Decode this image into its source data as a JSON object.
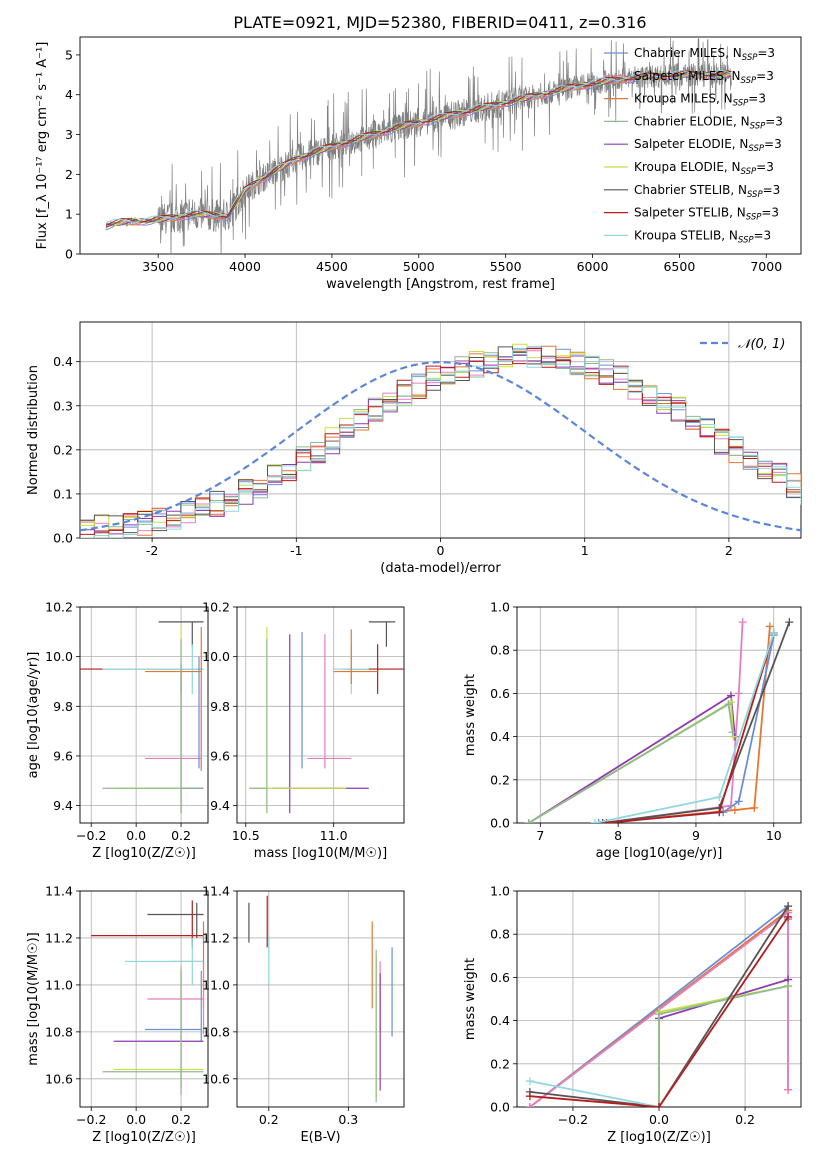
{
  "figure_title": "PLATE=0921, MJD=52380, FIBERID=0411, z=0.316",
  "colors": {
    "chabrier_miles": "#6b8fd6",
    "salpeter_miles": "#e57ec0",
    "kroupa_miles": "#e6772e",
    "chabrier_elodie": "#8fbc8f",
    "salpeter_elodie": "#8e3cae",
    "kroupa_elodie": "#c7df45",
    "chabrier_stelib": "#555555",
    "salpeter_stelib": "#b81c1c",
    "kroupa_stelib": "#8fd7dc",
    "data": "#808080",
    "gaussian": "#5b87d9"
  },
  "legend_spectrum": [
    {
      "label": "Chabrier MILES, N",
      "sub": "SSP",
      "tail": "=3"
    },
    {
      "label": "Salpeter MILES, N",
      "sub": "SSP",
      "tail": "=3"
    },
    {
      "label": "Kroupa MILES, N",
      "sub": "SSP",
      "tail": "=3"
    },
    {
      "label": "Chabrier ELODIE, N",
      "sub": "SSP",
      "tail": "=3"
    },
    {
      "label": "Salpeter ELODIE, N",
      "sub": "SSP",
      "tail": "=3"
    },
    {
      "label": "Kroupa ELODIE, N",
      "sub": "SSP",
      "tail": "=3"
    },
    {
      "label": "Chabrier STELIB, N",
      "sub": "SSP",
      "tail": "=3"
    },
    {
      "label": "Salpeter STELIB, N",
      "sub": "SSP",
      "tail": "=3"
    },
    {
      "label": "Kroupa STELIB, N",
      "sub": "SSP",
      "tail": "=3"
    }
  ],
  "legend_hist": {
    "label": "𝒩(0, 1)"
  },
  "chart_data": [
    {
      "id": "spectrum",
      "type": "line",
      "xlabel": "wavelength [Angstrom, rest frame]",
      "ylabel": "Flux [f_λ 10⁻¹⁷ erg cm⁻² s⁻¹ A⁻¹]",
      "xlim": [
        3050,
        7200
      ],
      "ylim": [
        0,
        5.45
      ],
      "xticks": [
        3500,
        4000,
        4500,
        5000,
        5500,
        6000,
        6500,
        7000
      ],
      "yticks": [
        0,
        1,
        2,
        3,
        4,
        5
      ],
      "grid": false,
      "legend": "top-right",
      "model_continuum": [
        [
          3200,
          0.72
        ],
        [
          3300,
          0.8
        ],
        [
          3500,
          0.85
        ],
        [
          3700,
          1.0
        ],
        [
          3900,
          0.95
        ],
        [
          4000,
          1.6
        ],
        [
          4100,
          1.9
        ],
        [
          4300,
          2.4
        ],
        [
          4500,
          2.7
        ],
        [
          4700,
          2.95
        ],
        [
          4900,
          3.2
        ],
        [
          5100,
          3.4
        ],
        [
          5300,
          3.6
        ],
        [
          5500,
          3.8
        ],
        [
          5700,
          4.0
        ],
        [
          5900,
          4.2
        ],
        [
          6100,
          4.35
        ],
        [
          6300,
          4.45
        ],
        [
          6500,
          4.5
        ],
        [
          6700,
          4.5
        ],
        [
          6800,
          4.5
        ]
      ]
    },
    {
      "id": "residuals",
      "type": "bar",
      "xlabel": "(data-model)/error",
      "ylabel": "Normed distribution",
      "xlim": [
        -2.5,
        2.5
      ],
      "ylim": [
        0,
        0.49
      ],
      "xticks": [
        -2,
        -1,
        0,
        1,
        2
      ],
      "yticks": [
        0.0,
        0.1,
        0.2,
        0.3,
        0.4
      ],
      "grid": true,
      "legend": "top-right",
      "bin_width": 0.1,
      "hist_base": [
        0.02,
        0.022,
        0.026,
        0.03,
        0.035,
        0.04,
        0.048,
        0.057,
        0.067,
        0.078,
        0.09,
        0.105,
        0.12,
        0.14,
        0.16,
        0.18,
        0.2,
        0.22,
        0.245,
        0.27,
        0.29,
        0.31,
        0.33,
        0.345,
        0.36,
        0.375,
        0.385,
        0.395,
        0.4,
        0.405,
        0.41,
        0.41,
        0.405,
        0.4,
        0.395,
        0.385,
        0.375,
        0.36,
        0.345,
        0.33,
        0.31,
        0.29,
        0.27,
        0.245,
        0.22,
        0.2,
        0.18,
        0.16,
        0.14,
        0.12,
        0.105,
        0.09,
        0.078,
        0.067,
        0.057,
        0.048,
        0.04,
        0.035,
        0.03,
        0.026
      ],
      "gaussian": {
        "mean": 0,
        "sigma": 1
      }
    },
    {
      "id": "age_vs_Z",
      "type": "scatter",
      "xlabel": "Z [log10(Z/Z☉)]",
      "ylabel": "age [log10(age/yr)]",
      "xlim": [
        -0.25,
        0.32
      ],
      "ylim": [
        9.33,
        10.2
      ],
      "xticks": [
        -0.2,
        0.0,
        0.2
      ],
      "yticks": [
        9.4,
        9.6,
        9.8,
        10.0,
        10.2
      ],
      "grid": true,
      "points": [
        {
          "s": "chabrier_stelib",
          "x": 0.25,
          "y": 10.14,
          "xe": [
            -0.15,
            0.05
          ],
          "ye": [
            -0.1,
            0.0
          ]
        },
        {
          "s": "salpeter_stelib",
          "x": 0.2,
          "y": 9.95,
          "xe": [
            -0.45,
            0.1
          ],
          "ye": [
            -0.1,
            0.0
          ]
        },
        {
          "s": "kroupa_stelib",
          "x": 0.25,
          "y": 9.95,
          "xe": [
            -0.4,
            0.05
          ],
          "ye": [
            -0.1,
            0.1
          ]
        },
        {
          "s": "kroupa_miles",
          "x": 0.29,
          "y": 9.94,
          "xe": [
            -0.25,
            0.0
          ],
          "ye": [
            -0.4,
            0.18
          ]
        },
        {
          "s": "salpeter_miles",
          "x": 0.29,
          "y": 9.59,
          "xe": [
            -0.25,
            0.0
          ],
          "ye": [
            -0.05,
            0.3
          ]
        },
        {
          "s": "chabrier_miles",
          "x": 0.28,
          "y": 9.6,
          "xe": [
            0.0,
            0.0
          ],
          "ye": [
            -0.05,
            0.4
          ]
        },
        {
          "s": "kroupa_elodie",
          "x": 0.2,
          "y": 9.47,
          "xe": [
            -0.3,
            0.1
          ],
          "ye": [
            -0.1,
            0.65
          ]
        },
        {
          "s": "salpeter_elodie",
          "x": 0.2,
          "y": 9.47,
          "xe": [
            0.0,
            0.1
          ],
          "ye": [
            -0.1,
            0.5
          ]
        },
        {
          "s": "chabrier_elodie",
          "x": 0.2,
          "y": 9.47,
          "xe": [
            -0.35,
            0.1
          ],
          "ye": [
            -0.1,
            0.6
          ]
        }
      ]
    },
    {
      "id": "age_vs_mass",
      "type": "scatter",
      "xlabel": "mass [log10(M/M☉)]",
      "ylabel": "",
      "xlim": [
        10.45,
        11.4
      ],
      "ylim": [
        9.33,
        10.2
      ],
      "xticks": [
        10.5,
        11.0
      ],
      "yticks": [
        9.4,
        9.6,
        9.8,
        10.0,
        10.2
      ],
      "grid": true,
      "points": [
        {
          "s": "chabrier_stelib",
          "x": 11.3,
          "y": 10.14,
          "xe": [
            -0.1,
            0.05
          ],
          "ye": [
            -0.1,
            0.0
          ]
        },
        {
          "s": "salpeter_stelib",
          "x": 11.25,
          "y": 9.95,
          "xe": [
            -0.2,
            0.15
          ],
          "ye": [
            -0.1,
            0.1
          ]
        },
        {
          "s": "kroupa_stelib",
          "x": 11.1,
          "y": 9.95,
          "xe": [
            -0.1,
            0.1
          ],
          "ye": [
            -0.1,
            0.1
          ]
        },
        {
          "s": "kroupa_miles",
          "x": 11.1,
          "y": 9.94,
          "xe": [
            -0.1,
            0.15
          ],
          "ye": [
            -0.05,
            0.17
          ]
        },
        {
          "s": "chabrier_miles",
          "x": 10.82,
          "y": 9.95,
          "xe": [
            0.0,
            0.0
          ],
          "ye": [
            -0.4,
            0.15
          ]
        },
        {
          "s": "salpeter_miles",
          "x": 10.95,
          "y": 9.59,
          "xe": [
            -0.1,
            0.15
          ],
          "ye": [
            -0.04,
            0.5
          ]
        },
        {
          "s": "salpeter_elodie",
          "x": 10.75,
          "y": 9.47,
          "xe": [
            -0.1,
            0.45
          ],
          "ye": [
            -0.1,
            0.62
          ]
        },
        {
          "s": "kroupa_elodie",
          "x": 10.62,
          "y": 9.47,
          "xe": [
            -0.1,
            0.45
          ],
          "ye": [
            -0.1,
            0.65
          ]
        },
        {
          "s": "chabrier_elodie",
          "x": 10.62,
          "y": 9.47,
          "xe": [
            -0.1,
            0.0
          ],
          "ye": [
            -0.1,
            0.6
          ]
        }
      ]
    },
    {
      "id": "weight_vs_age",
      "type": "line",
      "xlabel": "age [log10(age/yr)]",
      "ylabel": "mass weight",
      "xlim": [
        6.7,
        10.35
      ],
      "ylim": [
        0,
        1
      ],
      "xticks": [
        7,
        8,
        9,
        10
      ],
      "yticks": [
        0.0,
        0.2,
        0.4,
        0.6,
        0.8,
        1.0
      ],
      "grid": true,
      "series": [
        {
          "s": "kroupa_miles",
          "x": [
            7.8,
            9.5,
            9.75,
            9.95
          ],
          "y": [
            0.0,
            0.06,
            0.07,
            0.91
          ]
        },
        {
          "s": "salpeter_miles",
          "x": [
            7.8,
            9.45,
            9.55,
            9.6
          ],
          "y": [
            0.0,
            0.08,
            0.6,
            0.93
          ]
        },
        {
          "s": "chabrier_miles",
          "x": [
            7.75,
            9.35,
            9.55,
            10.0
          ],
          "y": [
            0.0,
            0.05,
            0.1,
            0.87
          ]
        },
        {
          "s": "salpeter_elodie",
          "x": [
            6.85,
            9.45,
            9.5
          ],
          "y": [
            0.0,
            0.59,
            0.4
          ]
        },
        {
          "s": "kroupa_elodie",
          "x": [
            6.85,
            9.45,
            9.48
          ],
          "y": [
            0.0,
            0.56,
            0.4
          ]
        },
        {
          "s": "chabrier_elodie",
          "x": [
            6.85,
            9.42,
            9.47
          ],
          "y": [
            0.0,
            0.55,
            0.42
          ]
        },
        {
          "s": "chabrier_stelib",
          "x": [
            7.8,
            9.3,
            10.2
          ],
          "y": [
            0.0,
            0.07,
            0.93
          ]
        },
        {
          "s": "salpeter_stelib",
          "x": [
            7.85,
            9.3,
            10.0
          ],
          "y": [
            0.0,
            0.05,
            0.88
          ]
        },
        {
          "s": "kroupa_stelib",
          "x": [
            7.7,
            9.3,
            10.0
          ],
          "y": [
            0.0,
            0.12,
            0.88
          ]
        }
      ]
    },
    {
      "id": "mass_vs_Z",
      "type": "scatter",
      "xlabel": "Z [log10(Z/Z☉)]",
      "ylabel": "mass [log10(M/M☉)]",
      "xlim": [
        -0.25,
        0.32
      ],
      "ylim": [
        10.48,
        11.4
      ],
      "xticks": [
        -0.2,
        0.0,
        0.2
      ],
      "yticks": [
        10.6,
        10.8,
        11.0,
        11.2,
        11.4
      ],
      "grid": true,
      "points": [
        {
          "s": "chabrier_stelib",
          "x": 0.27,
          "y": 11.3,
          "xe": [
            -0.22,
            0.03
          ],
          "ye": [
            -0.1,
            0.05
          ]
        },
        {
          "s": "salpeter_stelib",
          "x": 0.25,
          "y": 11.21,
          "xe": [
            -0.45,
            0.05
          ],
          "ye": [
            -0.05,
            0.15
          ]
        },
        {
          "s": "kroupa_miles",
          "x": 0.3,
          "y": 11.1,
          "xe": [
            -0.15,
            0.0
          ],
          "ye": [
            -0.2,
            0.17
          ]
        },
        {
          "s": "kroupa_stelib",
          "x": 0.25,
          "y": 11.1,
          "xe": [
            -0.3,
            0.05
          ],
          "ye": [
            -0.1,
            0.1
          ]
        },
        {
          "s": "salpeter_miles",
          "x": 0.3,
          "y": 10.94,
          "xe": [
            -0.25,
            0.0
          ],
          "ye": [
            -0.15,
            0.15
          ]
        },
        {
          "s": "chabrier_miles",
          "x": 0.29,
          "y": 10.81,
          "xe": [
            -0.25,
            0.0
          ],
          "ye": [
            -0.05,
            0.25
          ]
        },
        {
          "s": "salpeter_elodie",
          "x": 0.2,
          "y": 10.76,
          "xe": [
            -0.3,
            0.1
          ],
          "ye": [
            -0.2,
            0.3
          ]
        },
        {
          "s": "kroupa_elodie",
          "x": 0.2,
          "y": 10.64,
          "xe": [
            -0.3,
            0.1
          ],
          "ye": [
            -0.1,
            0.4
          ]
        },
        {
          "s": "chabrier_elodie",
          "x": 0.2,
          "y": 10.63,
          "xe": [
            -0.35,
            0.1
          ],
          "ye": [
            -0.1,
            0.45
          ]
        }
      ]
    },
    {
      "id": "mass_vs_EBV",
      "type": "scatter",
      "xlabel": "E(B-V)",
      "ylabel": "",
      "xlim": [
        0.16,
        0.37
      ],
      "ylim": [
        10.48,
        11.4
      ],
      "xticks": [
        0.2,
        0.3
      ],
      "yticks": [
        10.6,
        10.8,
        11.0,
        11.2,
        11.4
      ],
      "grid": true,
      "points": [
        {
          "s": "chabrier_stelib",
          "x": 0.175,
          "y": 11.3,
          "xe": [
            0,
            0
          ],
          "ye": [
            -0.12,
            0.05
          ]
        },
        {
          "s": "salpeter_stelib",
          "x": 0.198,
          "y": 11.21,
          "xe": [
            0,
            0
          ],
          "ye": [
            -0.05,
            0.17
          ]
        },
        {
          "s": "kroupa_stelib",
          "x": 0.2,
          "y": 11.1,
          "xe": [
            0,
            0
          ],
          "ye": [
            -0.1,
            0.1
          ]
        },
        {
          "s": "kroupa_miles",
          "x": 0.33,
          "y": 11.1,
          "xe": [
            0,
            0
          ],
          "ye": [
            -0.2,
            0.17
          ]
        },
        {
          "s": "salpeter_miles",
          "x": 0.34,
          "y": 10.95,
          "xe": [
            0,
            0
          ],
          "ye": [
            -0.15,
            0.15
          ]
        },
        {
          "s": "chabrier_miles",
          "x": 0.355,
          "y": 10.95,
          "xe": [
            0,
            0
          ],
          "ye": [
            -0.17,
            0.21
          ]
        },
        {
          "s": "salpeter_elodie",
          "x": 0.34,
          "y": 10.75,
          "xe": [
            0,
            0
          ],
          "ye": [
            -0.2,
            0.3
          ]
        },
        {
          "s": "kroupa_elodie",
          "x": 0.335,
          "y": 10.72,
          "xe": [
            0,
            0
          ],
          "ye": [
            -0.2,
            0.4
          ]
        },
        {
          "s": "chabrier_elodie",
          "x": 0.335,
          "y": 10.7,
          "xe": [
            0,
            0
          ],
          "ye": [
            -0.2,
            0.45
          ]
        }
      ]
    },
    {
      "id": "weight_vs_Z",
      "type": "line",
      "xlabel": "Z [log10(Z/Z☉)]",
      "ylabel": "mass weight",
      "xlim": [
        -0.33,
        0.33
      ],
      "ylim": [
        0,
        1
      ],
      "xticks": [
        -0.2,
        0.0,
        0.2
      ],
      "yticks": [
        0.0,
        0.2,
        0.4,
        0.6,
        0.8,
        1.0
      ],
      "grid": true,
      "series": [
        {
          "s": "chabrier_miles",
          "x": [
            -0.3,
            0.3,
            0.3
          ],
          "y": [
            0.0,
            0.93,
            0.87
          ]
        },
        {
          "s": "kroupa_miles",
          "x": [
            -0.3,
            0.3,
            0.3
          ],
          "y": [
            0.0,
            0.91,
            0.08
          ]
        },
        {
          "s": "salpeter_miles",
          "x": [
            -0.3,
            0.3,
            0.3
          ],
          "y": [
            0.0,
            0.9,
            0.08
          ]
        },
        {
          "s": "salpeter_elodie",
          "x": [
            0.0,
            0.0,
            0.3
          ],
          "y": [
            0.0,
            0.41,
            0.59
          ]
        },
        {
          "s": "kroupa_elodie",
          "x": [
            0.0,
            0.0,
            0.3
          ],
          "y": [
            0.0,
            0.44,
            0.56
          ]
        },
        {
          "s": "chabrier_elodie",
          "x": [
            0.0,
            0.0,
            0.3
          ],
          "y": [
            0.0,
            0.43,
            0.56
          ]
        },
        {
          "s": "chabrier_stelib",
          "x": [
            -0.3,
            0.0,
            0.3
          ],
          "y": [
            0.07,
            0.0,
            0.93
          ]
        },
        {
          "s": "kroupa_stelib",
          "x": [
            -0.3,
            0.0,
            0.3
          ],
          "y": [
            0.12,
            0.0,
            0.88
          ]
        },
        {
          "s": "salpeter_stelib",
          "x": [
            -0.3,
            0.0,
            0.3
          ],
          "y": [
            0.05,
            0.0,
            0.88
          ]
        }
      ]
    }
  ]
}
